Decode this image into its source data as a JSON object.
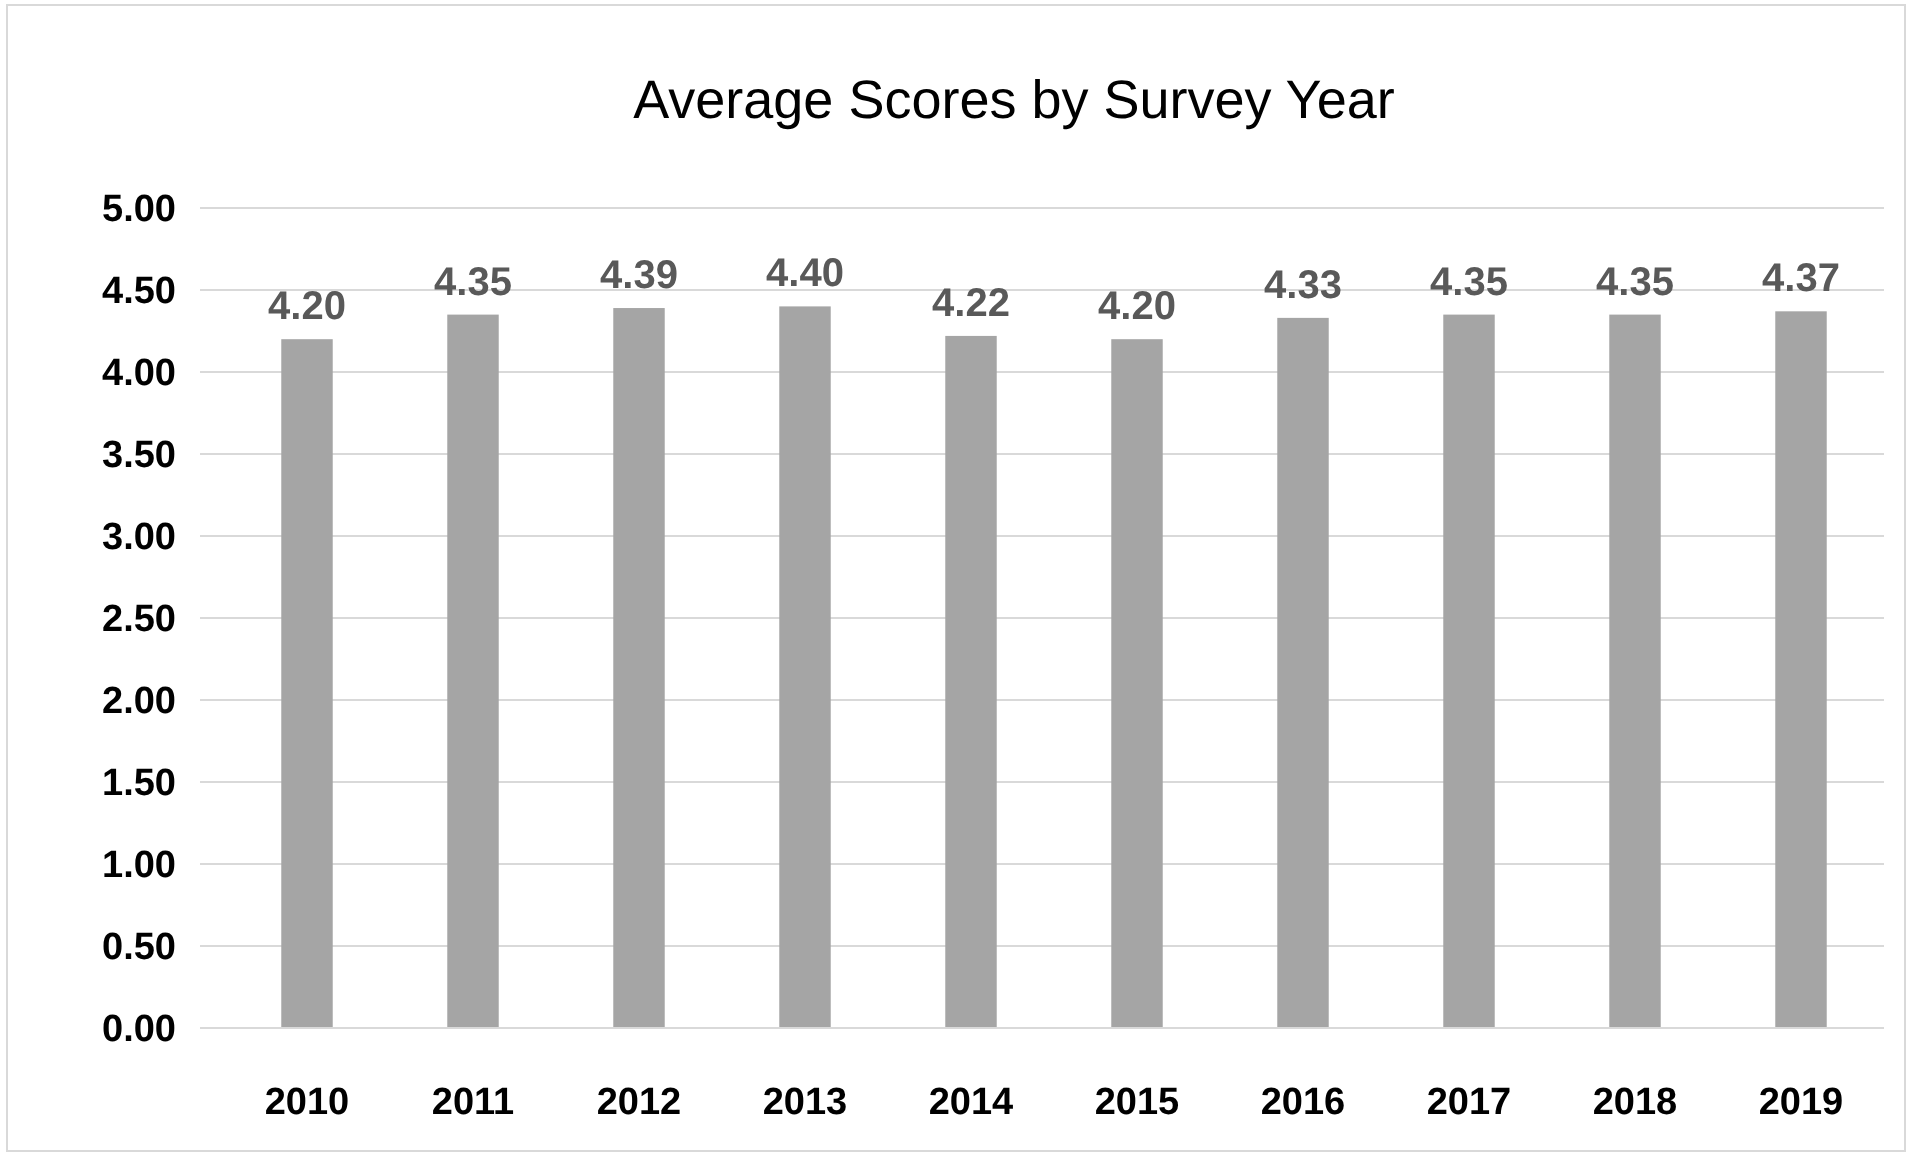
{
  "chart_data": {
    "type": "bar",
    "title": "Average Scores by Survey Year",
    "categories": [
      "2010",
      "2011",
      "2012",
      "2013",
      "2014",
      "2015",
      "2016",
      "2017",
      "2018",
      "2019"
    ],
    "values": [
      4.2,
      4.35,
      4.39,
      4.4,
      4.22,
      4.2,
      4.33,
      4.35,
      4.35,
      4.37
    ],
    "value_labels": [
      "4.20",
      "4.35",
      "4.39",
      "4.40",
      "4.22",
      "4.20",
      "4.33",
      "4.35",
      "4.35",
      "4.37"
    ],
    "color": "#a5a5a5",
    "ylim": [
      0,
      5
    ],
    "yticks": [
      {
        "value": 0,
        "label": "0.00"
      },
      {
        "value": 0.5,
        "label": "0.50"
      },
      {
        "value": 1,
        "label": "1.00"
      },
      {
        "value": 1.5,
        "label": "1.50"
      },
      {
        "value": 2,
        "label": "2.00"
      },
      {
        "value": 2.5,
        "label": "2.50"
      },
      {
        "value": 3,
        "label": "3.00"
      },
      {
        "value": 3.5,
        "label": "3.50"
      },
      {
        "value": 4,
        "label": "4.00"
      },
      {
        "value": 4.5,
        "label": "4.50"
      },
      {
        "value": 5,
        "label": "5.00"
      }
    ],
    "grid": "y"
  }
}
